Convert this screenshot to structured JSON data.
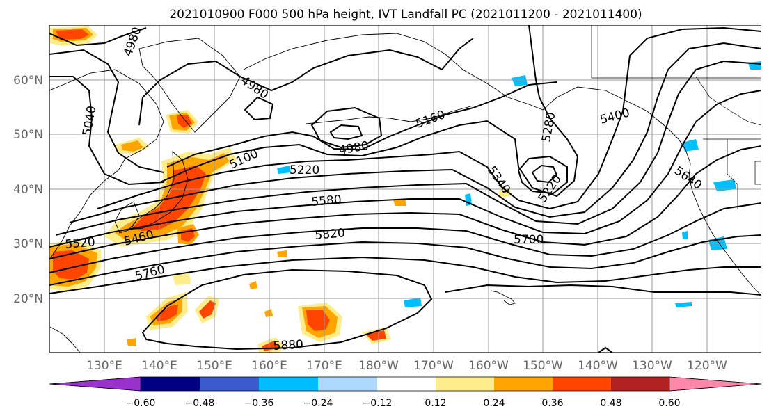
{
  "title": "2021010900 F000 500 hPa height, IVT Landfall PC (2021011200 - 2021011400)",
  "lat_labels": [
    "60°N",
    "50°N",
    "40°N",
    "30°N",
    "20°N"
  ],
  "lon_labels": [
    "130°E",
    "140°E",
    "150°E",
    "160°E",
    "170°E",
    "180°W",
    "170°W",
    "160°W",
    "150°W",
    "140°W",
    "130°W",
    "120°W"
  ],
  "contour_labels": [
    "4980",
    "4980",
    "4980",
    "5040",
    "5100",
    "5160",
    "5220",
    "5220",
    "5280",
    "5340",
    "5400",
    "5460",
    "5520",
    "5580",
    "5640",
    "5700",
    "5760",
    "5820",
    "5880"
  ],
  "colorbar": {
    "colors": [
      "#9932cc",
      "#000080",
      "#3a5acd",
      "#00bfff",
      "#add8ff",
      "#ffffff",
      "#ffec8b",
      "#ffa500",
      "#ff4500",
      "#b22222",
      "#ff88aa"
    ],
    "tick_labels": [
      "−0.60",
      "−0.48",
      "−0.36",
      "−0.24",
      "−0.12",
      "0.12",
      "0.24",
      "0.36",
      "0.48",
      "0.60"
    ],
    "extend": "both"
  },
  "colors": {
    "grid": "#999999",
    "axis_labels": "#666666",
    "contours": "#000000"
  }
}
